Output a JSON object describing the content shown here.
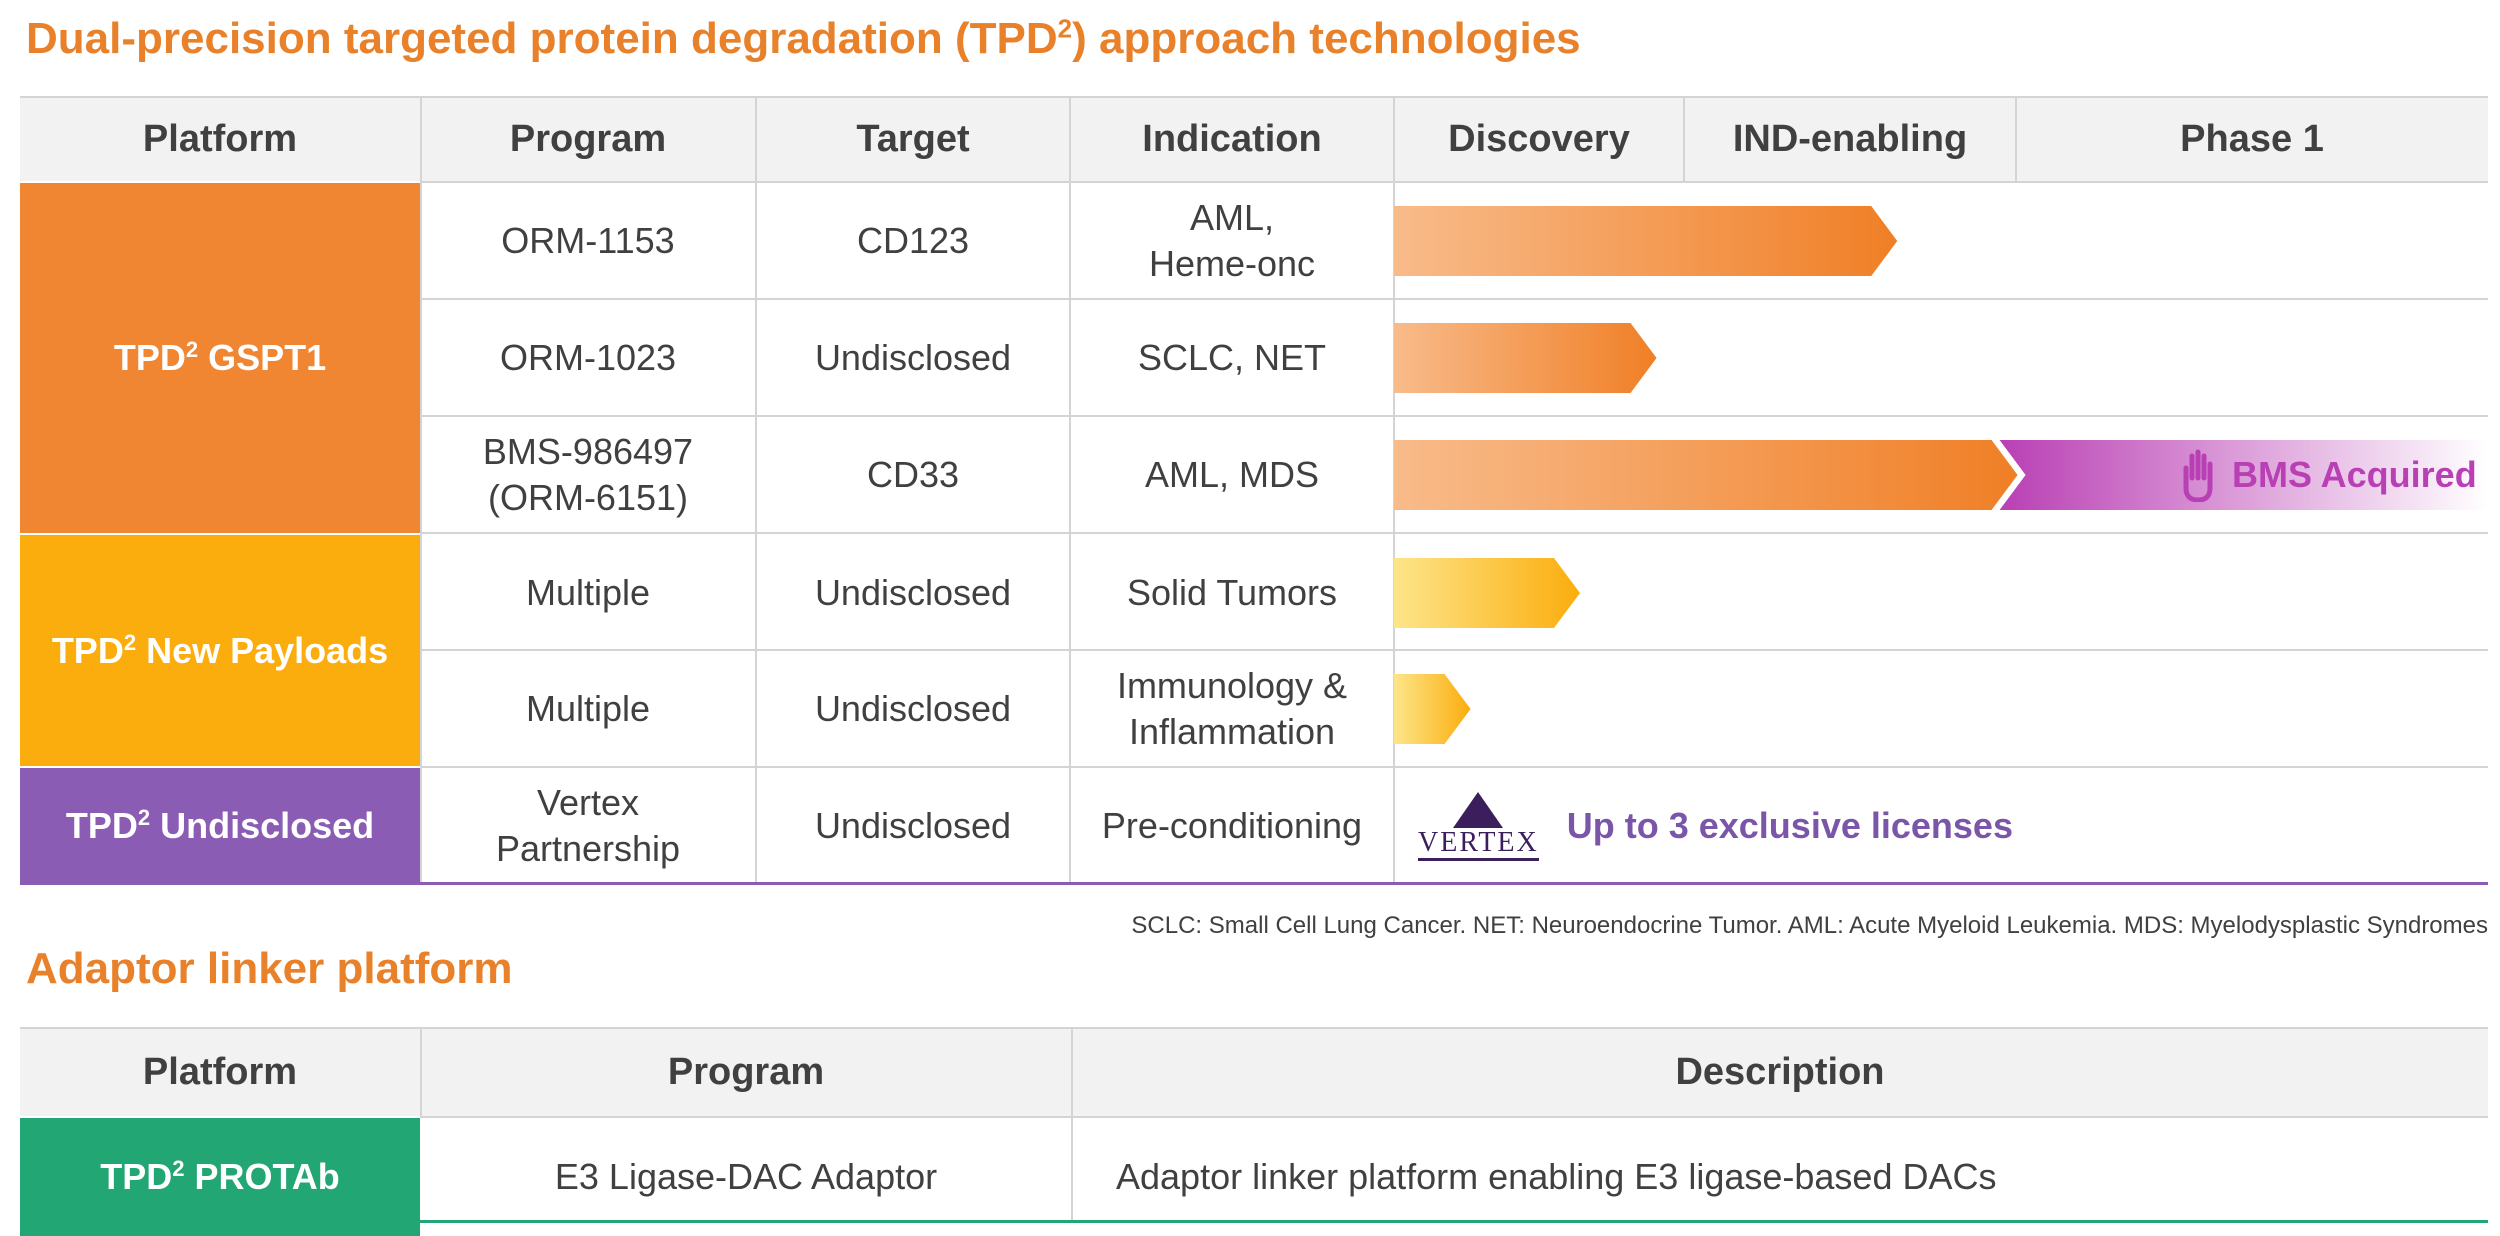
{
  "top_section": {
    "title_main": "Dual-precision targeted protein degradation (TPD",
    "title_sup": "2",
    "title_tail": ") approach technologies",
    "headers": {
      "platform": "Platform",
      "program": "Program",
      "target": "Target",
      "indication": "Indication",
      "discovery": "Discovery",
      "ind_enabling": "IND-enabling",
      "phase1": "Phase 1"
    },
    "platforms": [
      {
        "prefix": "TPD",
        "sup": "2",
        "name": " GSPT1",
        "color": "#f08532"
      },
      {
        "prefix": "TPD",
        "sup": "2",
        "name": " New Payloads",
        "color": "#fbad0d"
      },
      {
        "prefix": "TPD",
        "sup": "2",
        "name": " Undisclosed",
        "color": "#8a5cb4"
      }
    ],
    "rows": [
      {
        "program": "ORM-1153",
        "target": "CD123",
        "indication": "AML,\nHeme-onc",
        "progress": 0.46
      },
      {
        "program": "ORM-1023",
        "target": "Undisclosed",
        "indication": "SCLC, NET",
        "progress": 0.24
      },
      {
        "program": "BMS-986497\n(ORM-6151)",
        "target": "CD33",
        "indication": "AML, MDS",
        "progress": 0.57
      },
      {
        "program": "Multiple",
        "target": "Undisclosed",
        "indication": "Solid Tumors",
        "progress": 0.17
      },
      {
        "program": "Multiple",
        "target": "Undisclosed",
        "indication": "Immunology &\nInflammation",
        "progress": 0.07
      },
      {
        "program": "Vertex\nPartnership",
        "target": "Undisclosed",
        "indication": "Pre-conditioning"
      }
    ],
    "bms_acquired_label": "BMS Acquired",
    "vertex_logo_text": "VERTEX",
    "vertex_license_text": "Up to 3 exclusive licenses",
    "footnote": "SCLC: Small Cell Lung Cancer. NET: Neuroendocrine Tumor. AML: Acute Myeloid Leukemia. MDS: Myelodysplastic Syndromes"
  },
  "bottom_section": {
    "title": "Adaptor linker platform",
    "headers": {
      "platform": "Platform",
      "program": "Program",
      "description": "Description"
    },
    "row": {
      "platform_prefix": "TPD",
      "platform_sup": "2",
      "platform_name": " PROTAb",
      "platform_color": "#22a673",
      "program": "E3 Ligase-DAC Adaptor",
      "description": "Adaptor linker platform enabling E3 ligase-based DACs"
    }
  },
  "colors": {
    "orange_title": "#e8812a",
    "bar_orange": "#f08532",
    "bar_yellow": "#fbad0d",
    "bms_magenta": "#b93fb4",
    "vertex_purple": "#7a55a8"
  }
}
